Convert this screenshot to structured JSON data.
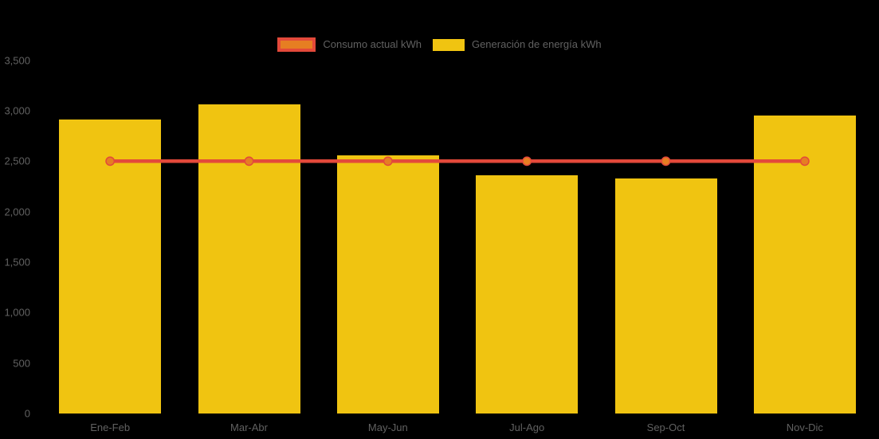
{
  "colors": {
    "background": "#000000",
    "bar": "#F0C411",
    "line": "#E3493A",
    "marker_fill": "#E67E22",
    "axis_text": "#616161"
  },
  "legend": {
    "items": [
      {
        "label": "Consumo actual kWh",
        "swatch": "line-marker-swatch",
        "line_color": "#E3493A",
        "fill_color": "#E67E22"
      },
      {
        "label": "Generación de energía kWh",
        "swatch": "bar-swatch",
        "fill_color": "#F0C411"
      }
    ]
  },
  "chart_data": {
    "type": "bar",
    "title": "",
    "xlabel": "",
    "ylabel": "",
    "categories": [
      "Ene-Feb",
      "Mar-Abr",
      "May-Jun",
      "Jul-Ago",
      "Sep-Oct",
      "Nov-Dic"
    ],
    "series": [
      {
        "name": "Generación de energía kWh",
        "type": "bar",
        "color": "#F0C411",
        "values": [
          2910,
          3060,
          2560,
          2360,
          2330,
          2950
        ]
      },
      {
        "name": "Consumo actual kWh",
        "type": "line",
        "color": "#E3493A",
        "marker_color": "#E67E22",
        "values": [
          2500,
          2500,
          2500,
          2500,
          2500,
          2500
        ]
      }
    ],
    "ylim": [
      0,
      3500
    ],
    "ytick_step": 500,
    "ytick_labels": [
      "0",
      "500",
      "1,000",
      "1,500",
      "2,000",
      "2,500",
      "3,000",
      "3,500"
    ],
    "grid": false,
    "legend_position": "top-center"
  }
}
